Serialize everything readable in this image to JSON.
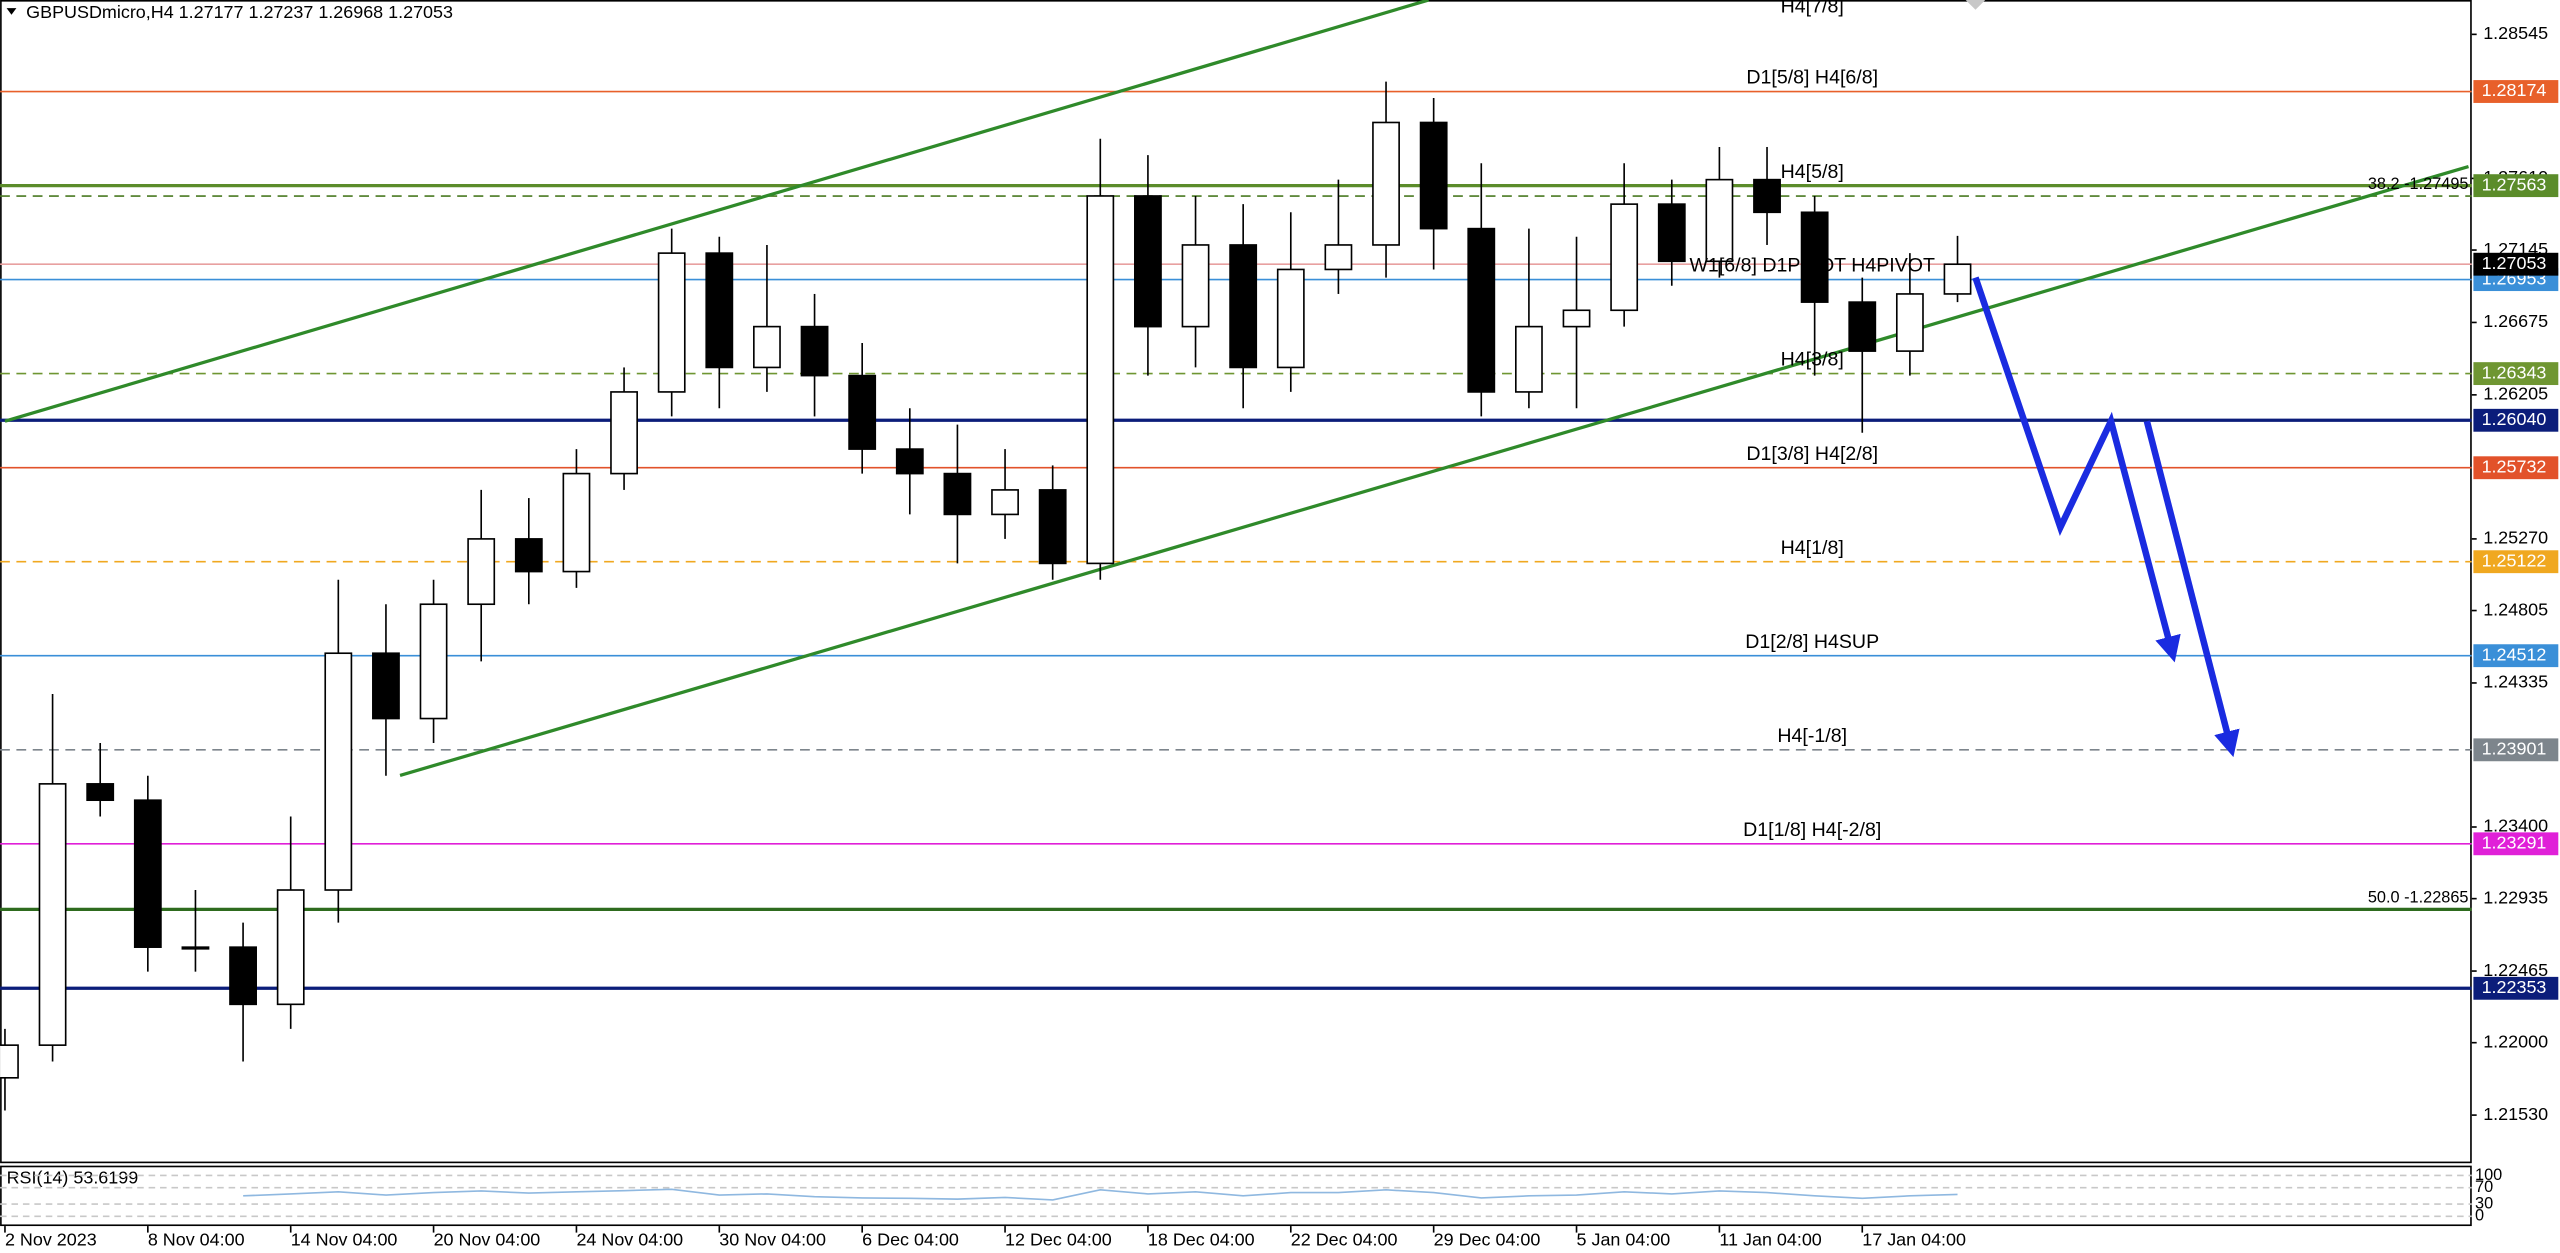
{
  "chart_data": {
    "type": "candlestick",
    "title": "GBPUSDmicro,H4  1.27177 1.27237 1.26968 1.27053",
    "categories": [
      "2 Nov 2023",
      null,
      null,
      "8 Nov 04:00",
      null,
      null,
      "14 Nov 04:00",
      null,
      null,
      "20 Nov 04:00",
      null,
      null,
      "24 Nov 04:00",
      null,
      null,
      "30 Nov 04:00",
      null,
      null,
      "6 Dec 04:00",
      null,
      null,
      "12 Dec 04:00",
      null,
      null,
      "18 Dec 04:00",
      null,
      null,
      "22 Dec 04:00",
      null,
      null,
      "29 Dec 04:00",
      null,
      null,
      "5 Jan 04:00",
      null,
      null,
      "11 Jan 04:00",
      null,
      null,
      "17 Jan 04:00",
      null,
      null
    ],
    "open": [
      1.21772,
      1.21984,
      1.2368,
      1.23574,
      1.2262,
      1.2262,
      1.22249,
      1.22991,
      1.24528,
      1.24104,
      1.24846,
      1.2527,
      1.25058,
      1.25694,
      1.26224,
      1.27125,
      1.26383,
      1.26648,
      1.2633,
      1.25853,
      1.25694,
      1.25429,
      1.25588,
      1.25111,
      1.27496,
      1.26648,
      1.27178,
      1.26383,
      1.27019,
      1.27178,
      1.27973,
      1.27284,
      1.26224,
      1.26648,
      1.26754,
      1.27443,
      1.27072,
      1.27602,
      1.2739,
      1.26807,
      1.26489,
      1.2686
    ],
    "high": [
      1.2209,
      1.24263,
      1.23945,
      1.23733,
      1.22991,
      1.22779,
      1.23468,
      1.25005,
      1.24846,
      1.25005,
      1.25588,
      1.25535,
      1.25853,
      1.26383,
      1.27284,
      1.27231,
      1.27178,
      1.2686,
      1.26542,
      1.26118,
      1.26012,
      1.25853,
      1.25747,
      1.27867,
      1.27761,
      1.27496,
      1.27443,
      1.2739,
      1.27602,
      1.28238,
      1.28132,
      1.27708,
      1.27284,
      1.27231,
      1.27708,
      1.27602,
      1.27814,
      1.27814,
      1.27496,
      1.26966,
      1.27125,
      1.27237
    ],
    "low": [
      1.2156,
      1.21878,
      1.23468,
      1.22461,
      1.22461,
      1.21878,
      1.2209,
      1.22779,
      1.23733,
      1.23945,
      1.24475,
      1.24846,
      1.24952,
      1.25588,
      1.26065,
      1.26118,
      1.26224,
      1.26065,
      1.25694,
      1.25429,
      1.25111,
      1.2527,
      1.25005,
      1.25005,
      1.2633,
      1.26383,
      1.26118,
      1.26224,
      1.2686,
      1.26966,
      1.27019,
      1.26065,
      1.26118,
      1.26118,
      1.26648,
      1.26913,
      1.26966,
      1.27178,
      1.2633,
      1.25959,
      1.2633,
      1.26807
    ],
    "close": [
      1.21984,
      1.2368,
      1.23574,
      1.2262,
      1.2262,
      1.22249,
      1.22991,
      1.24528,
      1.24104,
      1.24846,
      1.2527,
      1.25058,
      1.25694,
      1.26224,
      1.27125,
      1.26383,
      1.26648,
      1.2633,
      1.25853,
      1.25694,
      1.25429,
      1.25588,
      1.25111,
      1.27496,
      1.26648,
      1.27178,
      1.26383,
      1.27019,
      1.27178,
      1.27973,
      1.27284,
      1.26224,
      1.26648,
      1.26754,
      1.27443,
      1.27072,
      1.27602,
      1.2739,
      1.26807,
      1.26489,
      1.2686,
      1.27053
    ],
    "ylim": [
      1.21223,
      1.28768
    ],
    "yticks": [
      1.28545,
      {
        "value": 1.2761,
        "label": "1.27610"
      },
      1.27145,
      1.26675,
      1.26205,
      {
        "value": 1.2527,
        "label": "1.25270"
      },
      1.24805,
      1.24335,
      {
        "value": 1.234,
        "label": "1.23400"
      },
      1.22935,
      1.22465,
      {
        "value": 1.22,
        "label": "1.22000"
      },
      {
        "value": 1.2153,
        "label": "1.21530"
      }
    ],
    "levels": [
      {
        "value": 1.28784,
        "text": "H4[7/8]",
        "color": "#e8b020",
        "width": 1,
        "dash": true,
        "box": false
      },
      {
        "value": 1.28174,
        "text": "D1[5/8] H4[6/8]",
        "color": "#e8602a",
        "width": 1,
        "dash": false,
        "box": true
      },
      {
        "value": 1.27563,
        "text": "H4[5/8]",
        "color": "#5b8c2a",
        "width": 2,
        "dash": false,
        "box": true
      },
      {
        "value": 1.26953,
        "text": "W1[6/8] D1PIVOT H4PIVOT",
        "color": "#3a8fd8",
        "width": 1,
        "dash": false,
        "box": true
      },
      {
        "value": 1.26343,
        "text": "H4[3/8]",
        "color": "#6f9632",
        "width": 1,
        "dash": true,
        "box": true
      },
      {
        "value": 1.2604,
        "label": "1.26040",
        "color": "#0b1d7a",
        "width": 2,
        "dash": false,
        "box": true
      },
      {
        "value": 1.25732,
        "text": "D1[3/8] H4[2/8]",
        "color": "#e2522a",
        "width": 1,
        "dash": false,
        "box": true
      },
      {
        "value": 1.25122,
        "text": "H4[1/8]",
        "color": "#f0a820",
        "width": 1,
        "dash": true,
        "box": true
      },
      {
        "value": 1.24512,
        "text": "D1[2/8] H4SUP",
        "color": "#3a8fd8",
        "width": 1,
        "dash": false,
        "box": true
      },
      {
        "value": 1.23901,
        "text": "H4[-1/8]",
        "color": "#7d858c",
        "width": 1,
        "dash": true,
        "box": true
      },
      {
        "value": 1.23291,
        "text": "D1[1/8] H4[-2/8]",
        "color": "#e020d8",
        "width": 1,
        "dash": false,
        "box": true
      },
      {
        "value": 1.22353,
        "color": "#0b1d7a",
        "width": 2,
        "dash": false,
        "box": true
      }
    ],
    "current": {
      "value": 1.27053,
      "color": "#000000"
    },
    "fibo": [
      {
        "value": 1.27495,
        "text": "38.2 -1.27495",
        "color": "#4a7a22",
        "dash": true
      },
      {
        "value": 1.22865,
        "text": "50.0 -1.22865",
        "color": "#2e6b1e",
        "dash": false
      }
    ],
    "rsi": {
      "label": "RSI(14) 53.6199",
      "color": "#8fb8e0",
      "ylim": [
        0,
        100
      ],
      "yticks": [
        100,
        70,
        30,
        0
      ],
      "values": [
        null,
        null,
        null,
        null,
        null,
        50,
        55,
        60,
        52,
        58,
        62,
        57,
        60,
        63,
        66,
        52,
        55,
        48,
        45,
        44,
        42,
        46,
        40,
        65,
        55,
        60,
        50,
        58,
        58,
        65,
        58,
        45,
        50,
        52,
        60,
        55,
        62,
        58,
        50,
        44,
        50,
        53.6
      ]
    }
  }
}
